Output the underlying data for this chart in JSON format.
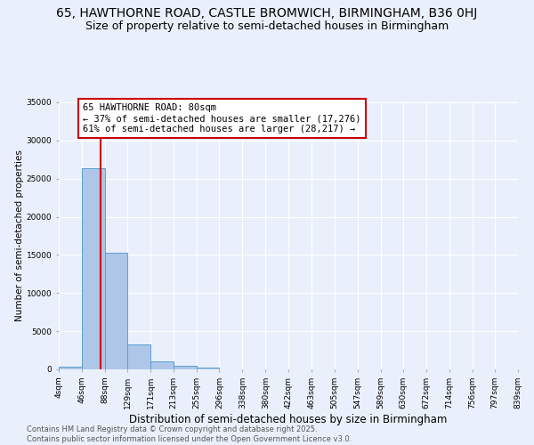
{
  "title": "65, HAWTHORNE ROAD, CASTLE BROMWICH, BIRMINGHAM, B36 0HJ",
  "subtitle": "Size of property relative to semi-detached houses in Birmingham",
  "xlabel": "Distribution of semi-detached houses by size in Birmingham",
  "ylabel": "Number of semi-detached properties",
  "bin_edges": [
    4,
    46,
    88,
    129,
    171,
    213,
    255,
    296,
    338,
    380,
    422,
    463,
    505,
    547,
    589,
    630,
    672,
    714,
    756,
    797,
    839
  ],
  "bin_labels": [
    "4sqm",
    "46sqm",
    "88sqm",
    "129sqm",
    "171sqm",
    "213sqm",
    "255sqm",
    "296sqm",
    "338sqm",
    "380sqm",
    "422sqm",
    "463sqm",
    "505sqm",
    "547sqm",
    "589sqm",
    "630sqm",
    "672sqm",
    "714sqm",
    "756sqm",
    "797sqm",
    "839sqm"
  ],
  "bar_heights": [
    400,
    26400,
    15300,
    3300,
    1100,
    500,
    200,
    50,
    10,
    5,
    2,
    1,
    0,
    0,
    0,
    0,
    0,
    0,
    0,
    0
  ],
  "bar_color": "#aec6e8",
  "bar_edge_color": "#5a9fd4",
  "property_size": 80,
  "property_line_color": "#cc0000",
  "annotation_line1": "65 HAWTHORNE ROAD: 80sqm",
  "annotation_line2": "← 37% of semi-detached houses are smaller (17,276)",
  "annotation_line3": "61% of semi-detached houses are larger (28,217) →",
  "annotation_box_color": "#ffffff",
  "annotation_box_edge": "#cc0000",
  "ylim": [
    0,
    35000
  ],
  "yticks": [
    0,
    5000,
    10000,
    15000,
    20000,
    25000,
    30000,
    35000
  ],
  "background_color": "#eaf0fb",
  "grid_color": "#ffffff",
  "footer_text": "Contains HM Land Registry data © Crown copyright and database right 2025.\nContains public sector information licensed under the Open Government Licence v3.0.",
  "title_fontsize": 10,
  "subtitle_fontsize": 9,
  "xlabel_fontsize": 8.5,
  "ylabel_fontsize": 7.5,
  "tick_fontsize": 6.5,
  "annotation_fontsize": 7.5,
  "footer_fontsize": 6
}
